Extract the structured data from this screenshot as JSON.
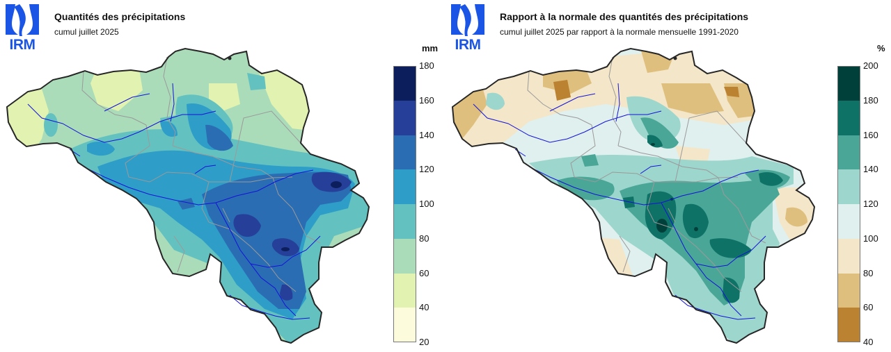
{
  "left": {
    "logo": "IRM",
    "title": "Quantités des précipitations",
    "subtitle": "cumul juillet 2025",
    "unit": "mm",
    "legend": {
      "ticks": [
        "180",
        "160",
        "140",
        "120",
        "100",
        "80",
        "60",
        "40",
        "20"
      ],
      "bins": [
        {
          "range": "160-180",
          "color": "#0c1f5c"
        },
        {
          "range": "140-160",
          "color": "#26409a"
        },
        {
          "range": "120-140",
          "color": "#2a6db3"
        },
        {
          "range": "100-120",
          "color": "#2e9dc8"
        },
        {
          "range": "80-100",
          "color": "#63c2c0"
        },
        {
          "range": "60-80",
          "color": "#abdcb9"
        },
        {
          "range": "40-60",
          "color": "#e2f2b0"
        },
        {
          "range": "20-40",
          "color": "#fcfcdc"
        }
      ]
    }
  },
  "right": {
    "logo": "IRM",
    "title": "Rapport à la normale des quantités des précipitations",
    "subtitle": "cumul juillet 2025 par rapport à la normale mensuelle 1991-2020",
    "unit": "%",
    "legend": {
      "ticks": [
        "200",
        "180",
        "160",
        "140",
        "120",
        "100",
        "80",
        "60",
        "40"
      ],
      "bins": [
        {
          "range": "180-200",
          "color": "#00403a"
        },
        {
          "range": "160-180",
          "color": "#0e7266"
        },
        {
          "range": "140-160",
          "color": "#4aa697"
        },
        {
          "range": "120-140",
          "color": "#9dd6cd"
        },
        {
          "range": "100-120",
          "color": "#e0f0ee"
        },
        {
          "range": "80-100",
          "color": "#f4e6c8"
        },
        {
          "range": "60-80",
          "color": "#dfbf7e"
        },
        {
          "range": "40-60",
          "color": "#ba8231"
        }
      ]
    }
  },
  "colors": {
    "logo": "#1a55e6",
    "border": "#262626",
    "rivers": "#1414d8",
    "provinces": "#9a9a9a"
  }
}
